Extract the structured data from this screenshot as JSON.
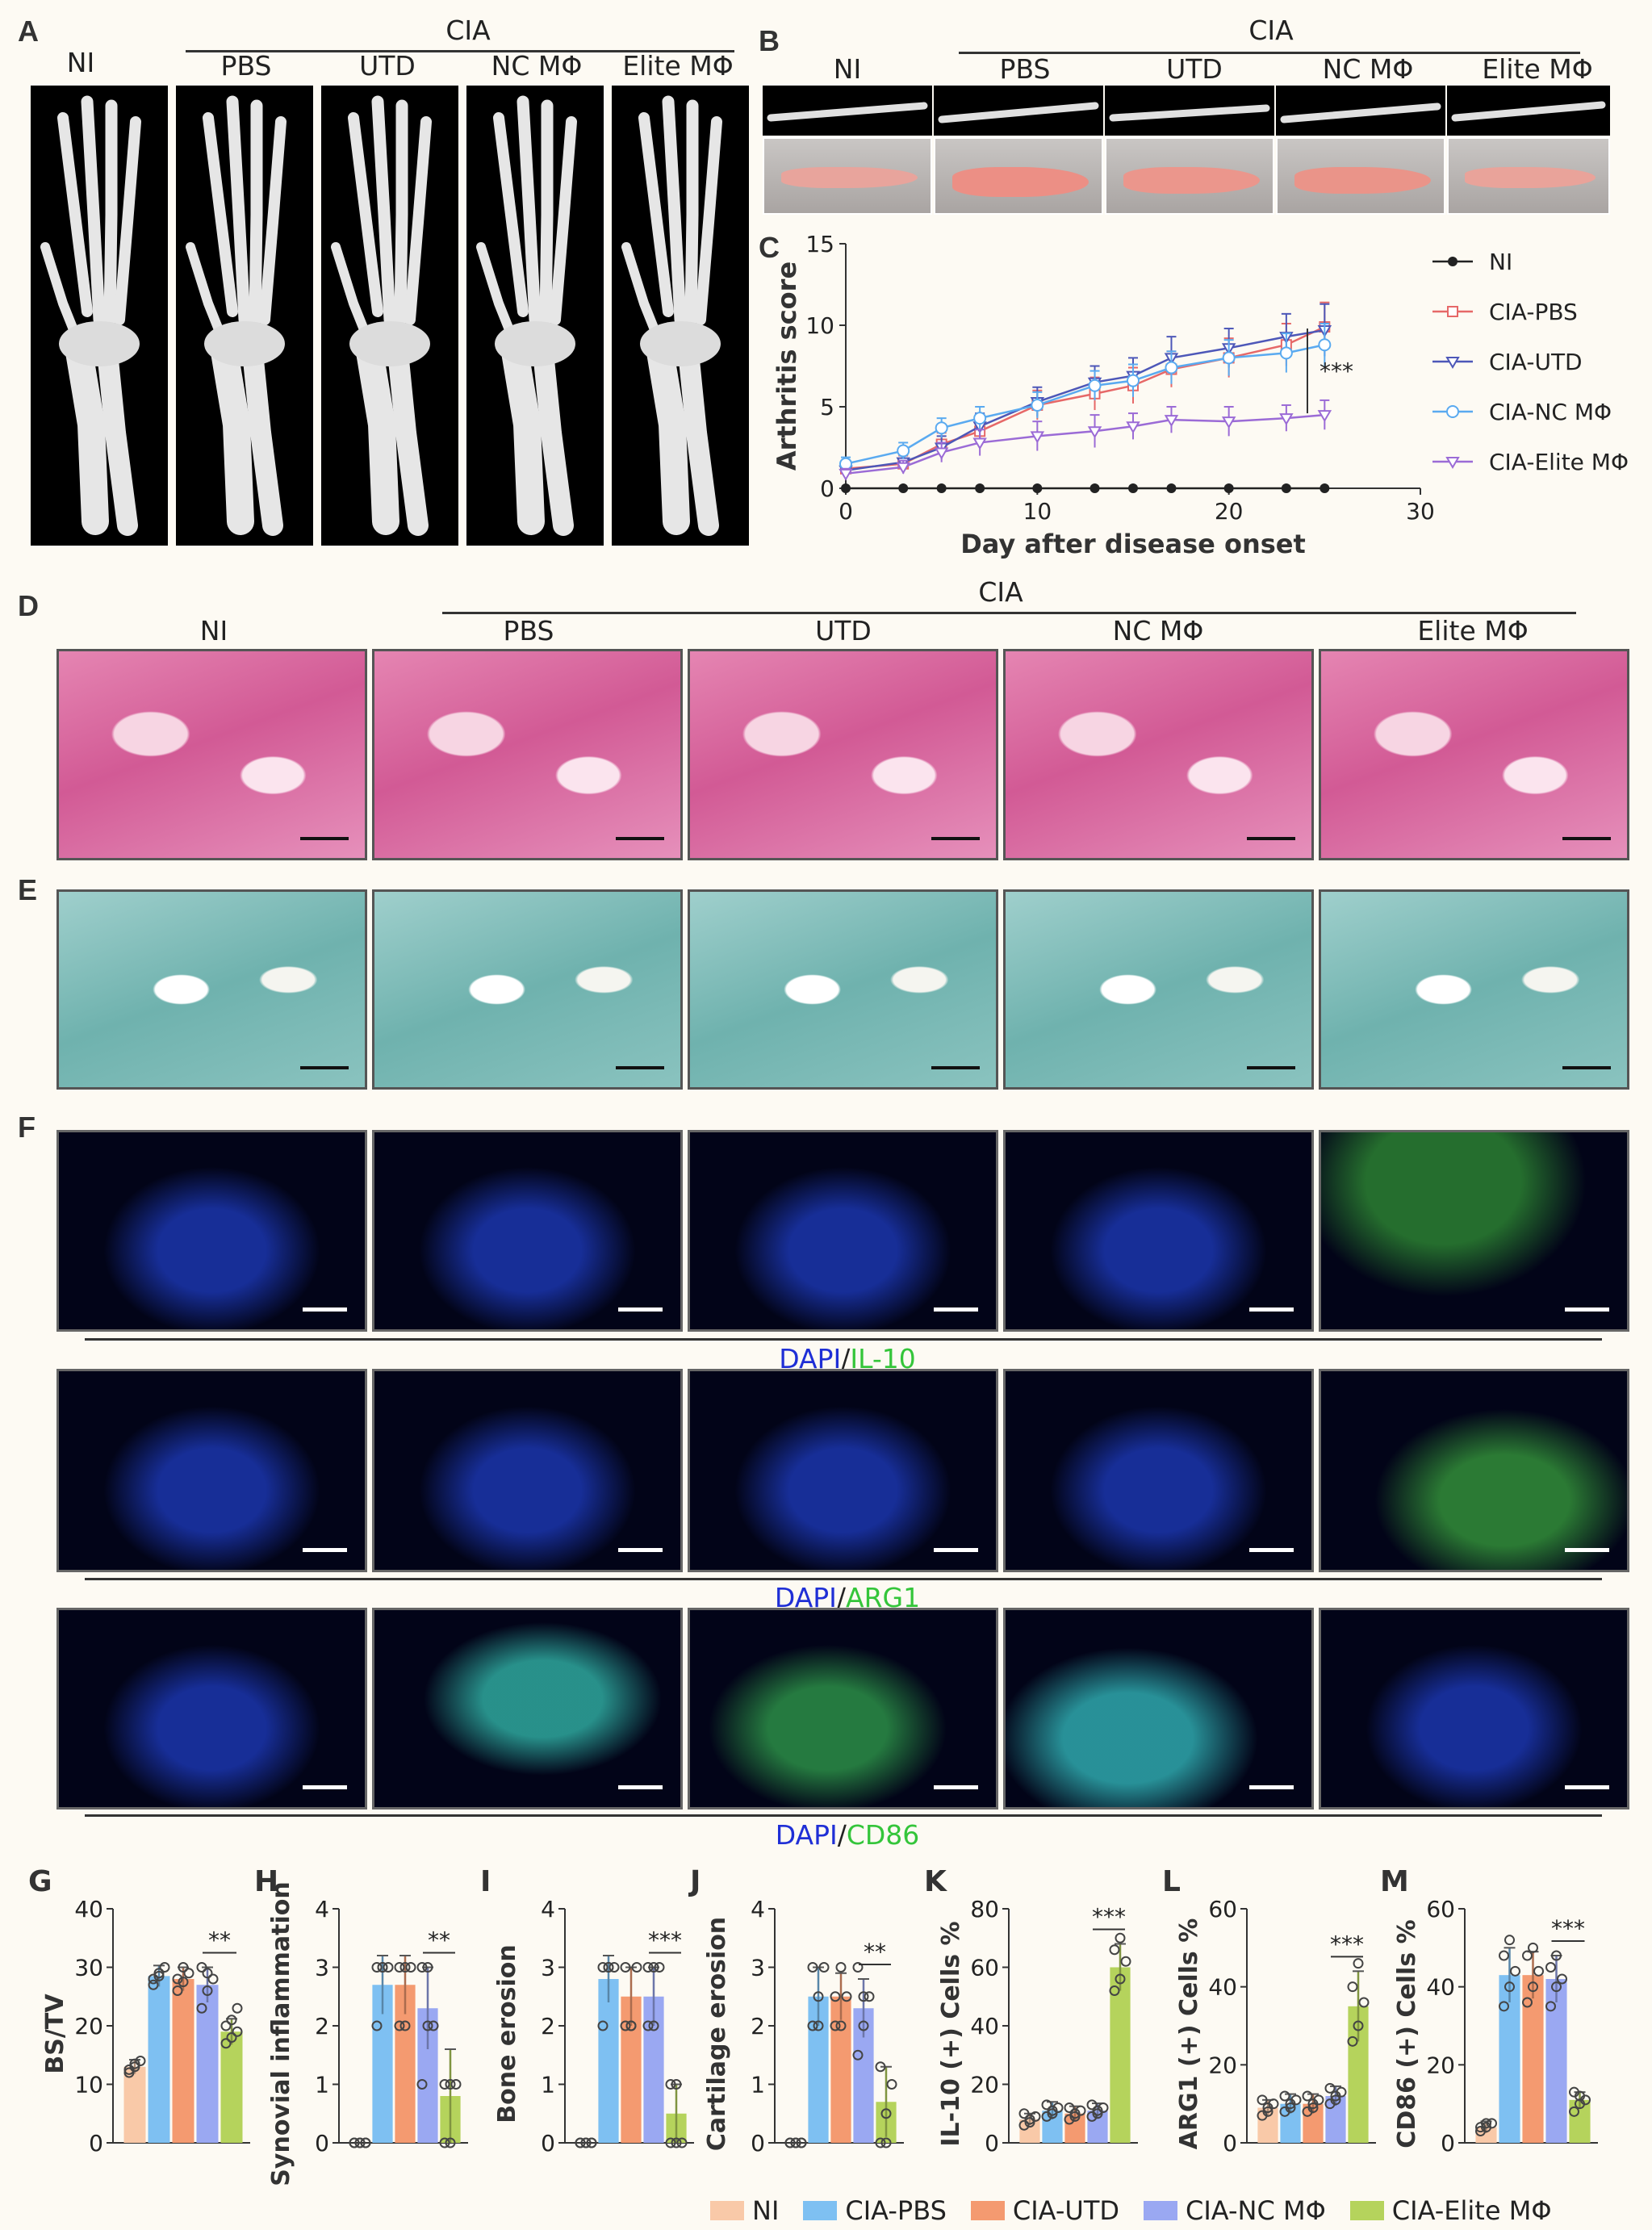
{
  "panels": {
    "A": "A",
    "B": "B",
    "C": "C",
    "D": "D",
    "E": "E",
    "F": "F",
    "G": "G",
    "H": "H",
    "I": "I",
    "J": "J",
    "K": "K",
    "L": "L",
    "M": "M"
  },
  "groups": {
    "cia": "CIA",
    "ni": "NI",
    "pbs": "PBS",
    "utd": "UTD",
    "nc": "NC MΦ",
    "elite": "Elite MΦ"
  },
  "stains": {
    "il10": {
      "dapi": "DAPI",
      "slash": "/",
      "marker": "IL-10"
    },
    "arg1": {
      "dapi": "DAPI",
      "slash": "/",
      "marker": "ARG1"
    },
    "cd86": {
      "dapi": "DAPI",
      "slash": "/",
      "marker": "CD86"
    }
  },
  "colors": {
    "ni": "#f9c9a8",
    "pbs": "#7ec0f2",
    "utd": "#f49a70",
    "nc": "#9aa8f2",
    "elite": "#b5d35c",
    "dapi": "#1f2fd6",
    "green": "#34c53a"
  },
  "chart_data": [
    {
      "type": "line",
      "panel": "C",
      "xlabel": "Day after disease onset",
      "ylabel": "Arthritis score",
      "xlim": [
        0,
        30
      ],
      "ylim": [
        0,
        15
      ],
      "xticks": [
        0,
        10,
        20,
        30
      ],
      "yticks": [
        0,
        5,
        10,
        15
      ],
      "x": [
        0,
        3,
        5,
        7,
        10,
        13,
        15,
        17,
        20,
        23,
        25
      ],
      "series": [
        {
          "name": "NI",
          "color": "#222222",
          "marker": "filled-circle",
          "values": [
            0,
            0,
            0,
            0,
            0,
            0,
            0,
            0,
            0,
            0,
            0
          ],
          "err": [
            0,
            0,
            0,
            0,
            0,
            0,
            0,
            0,
            0,
            0,
            0
          ]
        },
        {
          "name": "CIA-PBS",
          "color": "#e66868",
          "marker": "open-square",
          "values": [
            1.2,
            1.5,
            2.7,
            3.5,
            5.1,
            5.8,
            6.3,
            7.3,
            8.0,
            8.8,
            9.9
          ],
          "err": [
            0.4,
            0.5,
            0.7,
            0.8,
            0.9,
            1.0,
            1.1,
            1.1,
            1.2,
            1.3,
            1.5
          ]
        },
        {
          "name": "CIA-UTD",
          "color": "#4d57b8",
          "marker": "open-triangle-down",
          "values": [
            1.1,
            1.6,
            2.5,
            3.8,
            5.3,
            6.5,
            6.9,
            8.0,
            8.6,
            9.3,
            9.7
          ],
          "err": [
            0.4,
            0.5,
            0.7,
            0.8,
            0.9,
            1.0,
            1.1,
            1.3,
            1.2,
            1.4,
            1.6
          ]
        },
        {
          "name": "CIA-NC MΦ",
          "color": "#5aaaf0",
          "marker": "open-circle",
          "values": [
            1.5,
            2.3,
            3.7,
            4.3,
            5.1,
            6.3,
            6.6,
            7.4,
            8.0,
            8.3,
            8.8
          ],
          "err": [
            0.4,
            0.5,
            0.6,
            0.7,
            0.8,
            0.9,
            1.0,
            1.0,
            1.1,
            1.2,
            1.3
          ]
        },
        {
          "name": "CIA-Elite MΦ",
          "color": "#9b6bd6",
          "marker": "open-triangle-down",
          "values": [
            0.9,
            1.3,
            2.2,
            2.8,
            3.2,
            3.5,
            3.8,
            4.2,
            4.1,
            4.3,
            4.5
          ],
          "err": [
            0.3,
            0.4,
            0.6,
            0.8,
            0.9,
            1.0,
            0.8,
            0.8,
            0.9,
            0.8,
            0.9
          ]
        }
      ],
      "annotation": "***"
    },
    {
      "type": "bar",
      "panel": "G",
      "ylabel": "BS/TV",
      "ylim": [
        0,
        40
      ],
      "yticks": [
        0,
        10,
        20,
        30,
        40
      ],
      "values": [
        13,
        28.5,
        28,
        27,
        19
      ],
      "err": [
        1.2,
        1.8,
        2,
        3,
        2.2
      ],
      "points": [
        [
          12,
          13,
          14,
          12.5,
          13.5
        ],
        [
          27,
          29,
          30,
          28,
          28.5
        ],
        [
          26,
          27.5,
          29,
          28,
          30
        ],
        [
          23,
          26,
          28,
          30,
          29
        ],
        [
          17,
          18,
          19,
          20,
          21,
          23
        ]
      ],
      "sig": "**"
    },
    {
      "type": "bar",
      "panel": "H",
      "ylabel": "Synovial inflammation",
      "ylim": [
        0,
        4
      ],
      "yticks": [
        0,
        1,
        2,
        3,
        4
      ],
      "values": [
        0,
        2.7,
        2.7,
        2.3,
        0.8
      ],
      "err": [
        0,
        0.5,
        0.5,
        0.7,
        0.8
      ],
      "points": [
        [
          0,
          0,
          0,
          0,
          0,
          0
        ],
        [
          2,
          3,
          3,
          3,
          3
        ],
        [
          2,
          2,
          3,
          3,
          3
        ],
        [
          1,
          2,
          2,
          3,
          3
        ],
        [
          0,
          0,
          1,
          1,
          1
        ]
      ],
      "sig": "**"
    },
    {
      "type": "bar",
      "panel": "I",
      "ylabel": "Bone erosion",
      "ylim": [
        0,
        4
      ],
      "yticks": [
        0,
        1,
        2,
        3,
        4
      ],
      "values": [
        0,
        2.8,
        2.5,
        2.5,
        0.5
      ],
      "err": [
        0,
        0.4,
        0.5,
        0.5,
        0.5
      ],
      "points": [
        [
          0,
          0,
          0,
          0,
          0,
          0
        ],
        [
          2,
          3,
          3,
          3,
          3
        ],
        [
          2,
          2,
          3,
          3,
          2
        ],
        [
          2,
          2,
          3,
          3,
          3
        ],
        [
          0,
          0,
          0,
          1,
          1
        ]
      ],
      "sig": "***"
    },
    {
      "type": "bar",
      "panel": "J",
      "ylabel": "Cartilage erosion",
      "ylim": [
        0,
        4
      ],
      "yticks": [
        0,
        1,
        2,
        3,
        4
      ],
      "values": [
        0,
        2.5,
        2.5,
        2.3,
        0.7
      ],
      "err": [
        0,
        0.5,
        0.4,
        0.5,
        0.6
      ],
      "points": [
        [
          0,
          0,
          0,
          0,
          0,
          0
        ],
        [
          2,
          2,
          3,
          3,
          2.5
        ],
        [
          2,
          3,
          2.5,
          2.5,
          2
        ],
        [
          1.5,
          2,
          2.5,
          3,
          2.5
        ],
        [
          0,
          0,
          1,
          1.3,
          0.5
        ]
      ],
      "sig": "**"
    },
    {
      "type": "bar",
      "panel": "K",
      "ylabel": "IL-10 (+) Cells %",
      "ylim": [
        0,
        80
      ],
      "yticks": [
        0,
        20,
        40,
        60,
        80
      ],
      "values": [
        8,
        11,
        10,
        11,
        60
      ],
      "err": [
        2,
        3,
        2.5,
        2.5,
        8
      ],
      "points": [
        [
          6,
          8,
          9,
          10,
          7
        ],
        [
          9,
          11,
          12,
          13,
          10
        ],
        [
          8,
          10,
          11,
          12,
          9
        ],
        [
          9,
          11,
          12,
          13,
          10
        ],
        [
          52,
          56,
          62,
          66,
          70
        ]
      ],
      "sig": "***"
    },
    {
      "type": "bar",
      "panel": "L",
      "ylabel": "ARG1 (+) Cells %",
      "ylim": [
        0,
        60
      ],
      "yticks": [
        0,
        20,
        40,
        60
      ],
      "values": [
        9,
        10,
        10,
        12,
        35
      ],
      "err": [
        2,
        2.5,
        2.5,
        2.5,
        9
      ],
      "points": [
        [
          7,
          9,
          10,
          11,
          8
        ],
        [
          8,
          10,
          11,
          12,
          9
        ],
        [
          8,
          10,
          11,
          12,
          9
        ],
        [
          10,
          12,
          13,
          14,
          11
        ],
        [
          26,
          30,
          36,
          40,
          46
        ]
      ],
      "sig": "***"
    },
    {
      "type": "bar",
      "panel": "M",
      "ylabel": "CD86 (+) Cells %",
      "ylim": [
        0,
        60
      ],
      "yticks": [
        0,
        20,
        40,
        60
      ],
      "values": [
        4,
        43,
        43,
        42,
        11
      ],
      "err": [
        1.5,
        7,
        6,
        6,
        2
      ],
      "points": [
        [
          3,
          4,
          5,
          4,
          5
        ],
        [
          35,
          40,
          44,
          48,
          52
        ],
        [
          36,
          40,
          44,
          48,
          50
        ],
        [
          35,
          40,
          42,
          45,
          48
        ],
        [
          8,
          10,
          11,
          13,
          12
        ]
      ],
      "sig": "***"
    }
  ],
  "legend": [
    {
      "label": "NI",
      "color": "#f9c9a8"
    },
    {
      "label": "CIA-PBS",
      "color": "#7ec0f2"
    },
    {
      "label": "CIA-UTD",
      "color": "#f49a70"
    },
    {
      "label": "CIA-NC MΦ",
      "color": "#9aa8f2"
    },
    {
      "label": "CIA-Elite MΦ",
      "color": "#b5d35c"
    }
  ]
}
